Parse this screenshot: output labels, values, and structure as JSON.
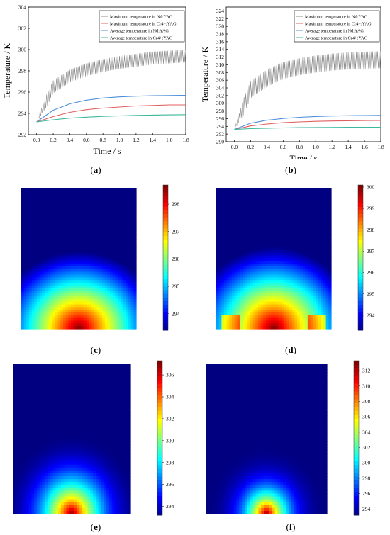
{
  "chart_data": [
    {
      "type": "line",
      "caption": "a",
      "xlabel": "Time / s",
      "ylabel": "Temperature / K",
      "xlim": [
        -0.1,
        1.8
      ],
      "ylim": [
        292,
        304
      ],
      "xticks": [
        0.0,
        0.2,
        0.4,
        0.6,
        0.8,
        1.0,
        1.2,
        1.4,
        1.6,
        1.8
      ],
      "yticks": [
        292,
        294,
        296,
        298,
        300,
        302,
        304
      ],
      "legend_position": "top-right",
      "series": [
        {
          "name": "Maximum temperature in Nd:YAG",
          "color": "#8c8c8c",
          "oscillating": true,
          "x": [
            0.0,
            0.2,
            0.4,
            0.6,
            0.8,
            1.0,
            1.2,
            1.4,
            1.6,
            1.8
          ],
          "y": [
            293.2,
            296.5,
            297.5,
            298.1,
            298.5,
            298.8,
            299.0,
            299.2,
            299.3,
            299.4
          ],
          "amplitude": 0.6
        },
        {
          "name": "Maximum temperature in Cr4+:YAG",
          "color": "#e06060",
          "x": [
            0.0,
            0.2,
            0.4,
            0.6,
            0.8,
            1.0,
            1.2,
            1.4,
            1.6,
            1.8
          ],
          "y": [
            293.2,
            293.7,
            294.1,
            294.35,
            294.5,
            294.6,
            294.7,
            294.75,
            294.8,
            294.8
          ]
        },
        {
          "name": "Average temperature in Nd:YAG",
          "color": "#4f8fd8",
          "x": [
            0.0,
            0.2,
            0.4,
            0.6,
            0.8,
            1.0,
            1.2,
            1.4,
            1.6,
            1.8
          ],
          "y": [
            293.2,
            294.3,
            294.9,
            295.25,
            295.45,
            295.55,
            295.62,
            295.66,
            295.68,
            295.7
          ]
        },
        {
          "name": "Average temperature in Cr4+:YAG",
          "color": "#3cb89a",
          "x": [
            0.0,
            0.2,
            0.4,
            0.6,
            0.8,
            1.0,
            1.2,
            1.4,
            1.6,
            1.8
          ],
          "y": [
            293.2,
            293.4,
            293.55,
            293.65,
            293.72,
            293.77,
            293.81,
            293.84,
            293.86,
            293.88
          ]
        }
      ]
    },
    {
      "type": "line",
      "caption": "b",
      "xlabel": "Time / s",
      "ylabel": "Temperature / K",
      "xlim": [
        -0.1,
        1.8
      ],
      "ylim": [
        290,
        325
      ],
      "xticks": [
        0.0,
        0.2,
        0.4,
        0.6,
        0.8,
        1.0,
        1.2,
        1.4,
        1.6,
        1.8
      ],
      "yticks": [
        290,
        292,
        294,
        296,
        298,
        300,
        302,
        304,
        306,
        308,
        310,
        312,
        314,
        316,
        318,
        320,
        322,
        324
      ],
      "legend_position": "top-right",
      "series": [
        {
          "name": "Maximum temperature in Nd:YAG",
          "color": "#8c8c8c",
          "oscillating": true,
          "x": [
            0.0,
            0.2,
            0.4,
            0.6,
            0.8,
            1.0,
            1.2,
            1.4,
            1.6,
            1.8
          ],
          "y": [
            293.2,
            303.5,
            306.5,
            308.5,
            309.5,
            310.2,
            310.7,
            311.0,
            311.2,
            311.3
          ],
          "amplitude": 2.2
        },
        {
          "name": "Maximum temperature in Cr4+:YAG",
          "color": "#e06060",
          "x": [
            0.0,
            0.2,
            0.4,
            0.6,
            0.8,
            1.0,
            1.2,
            1.4,
            1.6,
            1.8
          ],
          "y": [
            293.2,
            294.1,
            294.6,
            294.95,
            295.15,
            295.3,
            295.4,
            295.45,
            295.5,
            295.55
          ]
        },
        {
          "name": "Average temperature in Nd:YAG",
          "color": "#4f8fd8",
          "x": [
            0.0,
            0.2,
            0.4,
            0.6,
            0.8,
            1.0,
            1.2,
            1.4,
            1.6,
            1.8
          ],
          "y": [
            293.2,
            294.8,
            295.6,
            296.05,
            296.35,
            296.55,
            296.68,
            296.76,
            296.82,
            296.85
          ]
        },
        {
          "name": "Average temperature in Cr4+:YAG",
          "color": "#3cb89a",
          "x": [
            0.0,
            0.2,
            0.4,
            0.6,
            0.8,
            1.0,
            1.2,
            1.4,
            1.6,
            1.8
          ],
          "y": [
            293.2,
            293.4,
            293.52,
            293.6,
            293.66,
            293.7,
            293.73,
            293.75,
            293.77,
            293.78
          ]
        }
      ]
    },
    {
      "type": "heatmap",
      "caption": "c",
      "colorbar_ticks": [
        294,
        295,
        296,
        297,
        298
      ],
      "range": [
        293.4,
        298.7
      ],
      "hotspot": "bottom-wide"
    },
    {
      "type": "heatmap",
      "caption": "d",
      "colorbar_ticks": [
        294,
        295,
        296,
        297,
        298,
        299,
        300
      ],
      "range": [
        293.3,
        300.1
      ],
      "hotspot": "bottom-wide-corners"
    },
    {
      "type": "heatmap",
      "caption": "e",
      "colorbar_ticks": [
        294,
        296,
        298,
        300,
        302,
        304,
        306
      ],
      "range": [
        293.2,
        307.3
      ],
      "hotspot": "bottom-center"
    },
    {
      "type": "heatmap",
      "caption": "f",
      "colorbar_ticks": [
        294,
        296,
        298,
        300,
        302,
        304,
        306,
        308,
        310,
        312
      ],
      "range": [
        293.2,
        313.3
      ],
      "hotspot": "bottom-peak"
    }
  ],
  "captions": {
    "a": "a",
    "b": "b",
    "c": "c",
    "d": "d",
    "e": "e",
    "f": "f"
  }
}
